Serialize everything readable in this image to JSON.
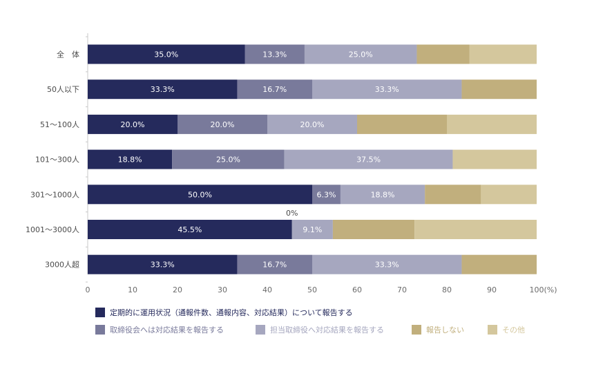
{
  "chart_data": {
    "type": "bar",
    "orientation": "horizontal",
    "stacked": true,
    "categories": [
      "全　体",
      "50人以下",
      "51～100人",
      "101～300人",
      "301～1000人",
      "1001～3000人",
      "3000人超"
    ],
    "series": [
      {
        "name": "定期的に運用状況（通報件数、通報内容、対応結果）について報告する",
        "color": "#252a5c",
        "values": [
          35.0,
          33.3,
          20.0,
          18.8,
          50.0,
          45.5,
          33.3
        ],
        "labels": [
          "35.0%",
          "33.3%",
          "20.0%",
          "18.8%",
          "50.0%",
          "45.5%",
          "33.3%"
        ]
      },
      {
        "name": "取締役会へは対応結果を報告する",
        "color": "#797a9b",
        "values": [
          13.3,
          16.7,
          20.0,
          25.0,
          6.3,
          0,
          16.7
        ],
        "labels": [
          "13.3%",
          "16.7%",
          "20.0%",
          "25.0%",
          "6.3%",
          "0%",
          "16.7%"
        ]
      },
      {
        "name": "担当取締役へ対応結果を報告する",
        "color": "#a6a7bf",
        "values": [
          25.0,
          33.3,
          20.0,
          37.5,
          18.8,
          9.1,
          33.3
        ],
        "labels": [
          "25.0%",
          "33.3%",
          "20.0%",
          "37.5%",
          "18.8%",
          "9.1%",
          "33.3%"
        ]
      },
      {
        "name": "報告しない",
        "color": "#c1af7d",
        "values": [
          11.7,
          16.7,
          20.0,
          0,
          12.5,
          18.2,
          16.7
        ],
        "labels": [
          "",
          "",
          "",
          "",
          "",
          "",
          ""
        ]
      },
      {
        "name": "その他",
        "color": "#d4c79d",
        "values": [
          15.0,
          0,
          20.0,
          18.7,
          12.4,
          27.2,
          0
        ],
        "labels": [
          "",
          "",
          "",
          "",
          "",
          "",
          ""
        ]
      }
    ],
    "xlim": [
      0,
      100
    ],
    "xticks": [
      "0",
      "10",
      "20",
      "30",
      "40",
      "50",
      "60",
      "70",
      "80",
      "90",
      "100"
    ],
    "unit_label": "(%)",
    "grid": false,
    "legend_position": "bottom"
  }
}
